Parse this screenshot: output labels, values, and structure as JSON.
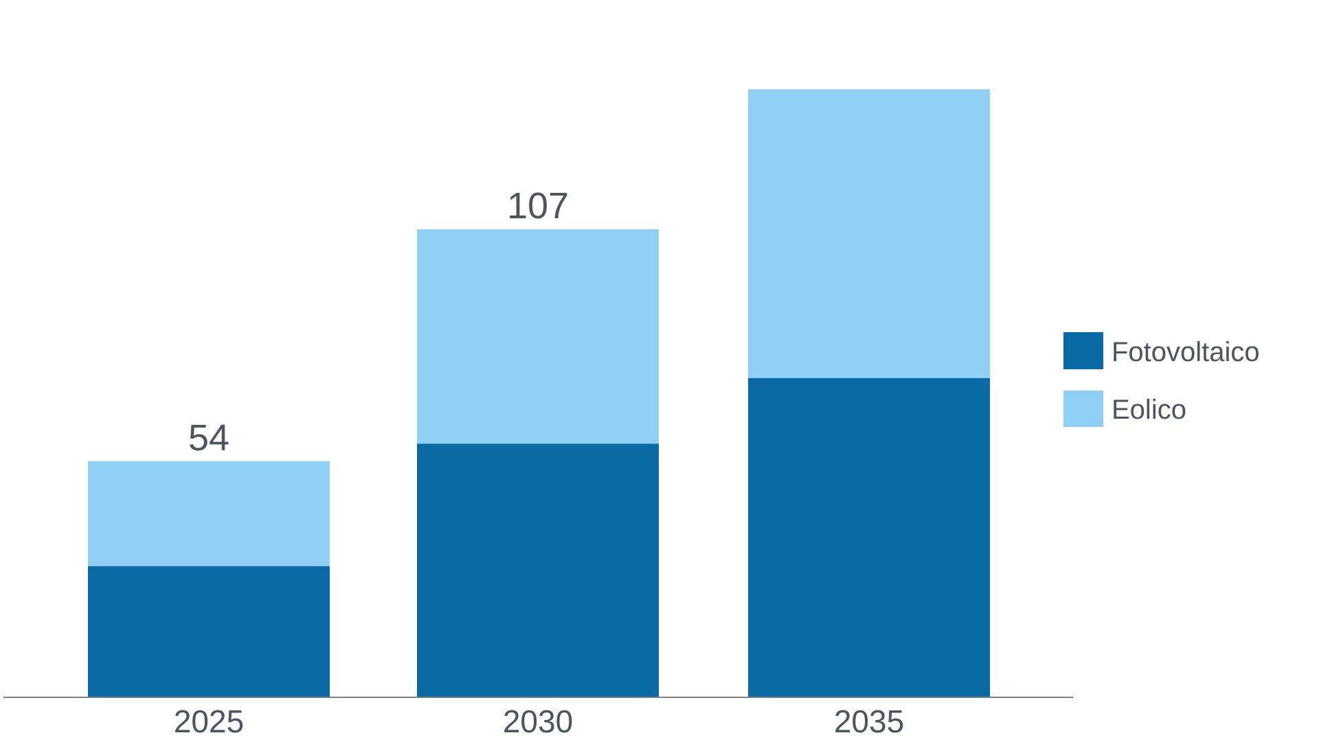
{
  "chart_data": {
    "type": "bar",
    "stacked": true,
    "categories": [
      "2025",
      "2030",
      "2035"
    ],
    "series": [
      {
        "name": "Fotovoltaico",
        "color": "#0a6aa6",
        "values": [
          30,
          58,
          73
        ]
      },
      {
        "name": "Eolico",
        "color": "#90d0f4",
        "values": [
          24,
          49,
          66
        ]
      }
    ],
    "totals": [
      54,
      107,
      139
    ],
    "data_labels": [
      "54",
      "107",
      ""
    ],
    "ylim": [
      0,
      150
    ],
    "grid": false,
    "legend_position": "right",
    "axis_line_color": "#808080"
  }
}
